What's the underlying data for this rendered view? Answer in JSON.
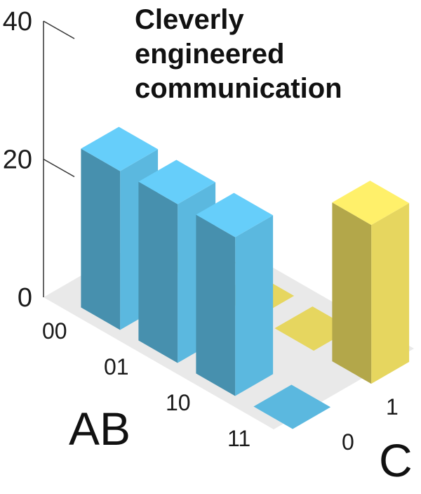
{
  "title_lines": [
    "Cleverly",
    "engineered",
    "communication"
  ],
  "chart_data": {
    "type": "bar3d",
    "title": "Cleverly engineered communication",
    "zlim": [
      0,
      40
    ],
    "z_ticks": [
      "0",
      "20",
      "40"
    ],
    "ab_axis": {
      "label": "AB",
      "categories": [
        "00",
        "01",
        "10",
        "11"
      ]
    },
    "c_axis": {
      "label": "C",
      "categories": [
        "0",
        "1"
      ]
    },
    "colors": {
      "C=0": "#5bb8df",
      "C=1": "#e6d65f",
      "floor": "#e9e9e9"
    },
    "values": [
      {
        "ab": "00",
        "c": "0",
        "value": 23
      },
      {
        "ab": "01",
        "c": "0",
        "value": 23
      },
      {
        "ab": "10",
        "c": "0",
        "value": 23
      },
      {
        "ab": "11",
        "c": "0",
        "value": 0
      },
      {
        "ab": "00",
        "c": "1",
        "value": 0
      },
      {
        "ab": "01",
        "c": "1",
        "value": 0
      },
      {
        "ab": "10",
        "c": "1",
        "value": 0
      },
      {
        "ab": "11",
        "c": "1",
        "value": 23
      }
    ]
  }
}
